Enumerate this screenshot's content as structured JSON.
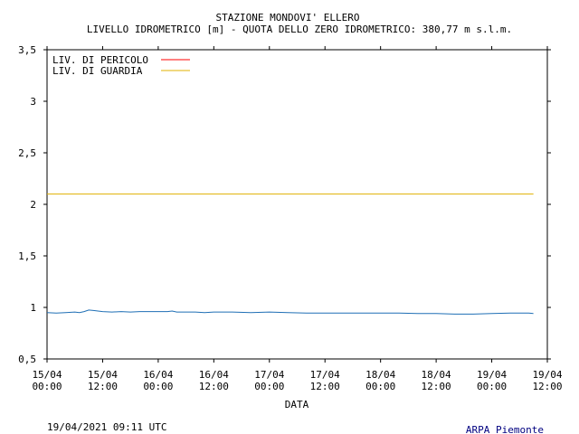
{
  "chart_data": {
    "type": "line",
    "title": "STAZIONE MONDOVI' ELLERO",
    "subtitle": "LIVELLO IDROMETRICO [m] - QUOTA DELLO ZERO IDROMETRICO: 380,77  m s.l.m.",
    "xlabel": "DATA",
    "ylabel": "",
    "ylim": [
      0.5,
      3.5
    ],
    "yticks": [
      0.5,
      1,
      1.5,
      2,
      2.5,
      3,
      3.5
    ],
    "ytick_labels": [
      "0,5",
      "1",
      "1,5",
      "2",
      "2,5",
      "3",
      "3,5"
    ],
    "xlim_hours": [
      0,
      108
    ],
    "xticks": [
      {
        "date": "15/04",
        "time": "00:00"
      },
      {
        "date": "15/04",
        "time": "12:00"
      },
      {
        "date": "16/04",
        "time": "00:00"
      },
      {
        "date": "16/04",
        "time": "12:00"
      },
      {
        "date": "17/04",
        "time": "00:00"
      },
      {
        "date": "17/04",
        "time": "12:00"
      },
      {
        "date": "18/04",
        "time": "00:00"
      },
      {
        "date": "18/04",
        "time": "12:00"
      },
      {
        "date": "19/04",
        "time": "00:00"
      },
      {
        "date": "19/04",
        "time": "12:00"
      }
    ],
    "grid": false,
    "legend_position": "top-left",
    "thresholds": [
      {
        "name": "LIV. DI PERICOLO",
        "value": null,
        "color": "#ff0000"
      },
      {
        "name": "LIV. DI GUARDIA",
        "value": 2.1,
        "color": "#e0b000"
      }
    ],
    "series": [
      {
        "name": "",
        "color": "#1f6fb5",
        "x": [
          0,
          2,
          4,
          6,
          7,
          8,
          9,
          10,
          11,
          12,
          14,
          16,
          18,
          20,
          22,
          24,
          26,
          27,
          28,
          30,
          32,
          34,
          36,
          40,
          44,
          48,
          52,
          56,
          60,
          64,
          68,
          72,
          76,
          80,
          84,
          88,
          90,
          92,
          96,
          100,
          104,
          105
        ],
        "y": [
          0.95,
          0.945,
          0.95,
          0.955,
          0.95,
          0.96,
          0.975,
          0.97,
          0.965,
          0.96,
          0.955,
          0.96,
          0.955,
          0.96,
          0.96,
          0.96,
          0.96,
          0.965,
          0.955,
          0.955,
          0.955,
          0.95,
          0.955,
          0.955,
          0.95,
          0.955,
          0.95,
          0.945,
          0.945,
          0.945,
          0.945,
          0.945,
          0.945,
          0.94,
          0.94,
          0.935,
          0.935,
          0.935,
          0.94,
          0.945,
          0.945,
          0.94
        ]
      }
    ]
  },
  "footer": {
    "timestamp": "19/04/2021 09:11 UTC",
    "source": "ARPA Piemonte"
  },
  "colors": {
    "axis": "#000000",
    "source_text": "#000080"
  }
}
